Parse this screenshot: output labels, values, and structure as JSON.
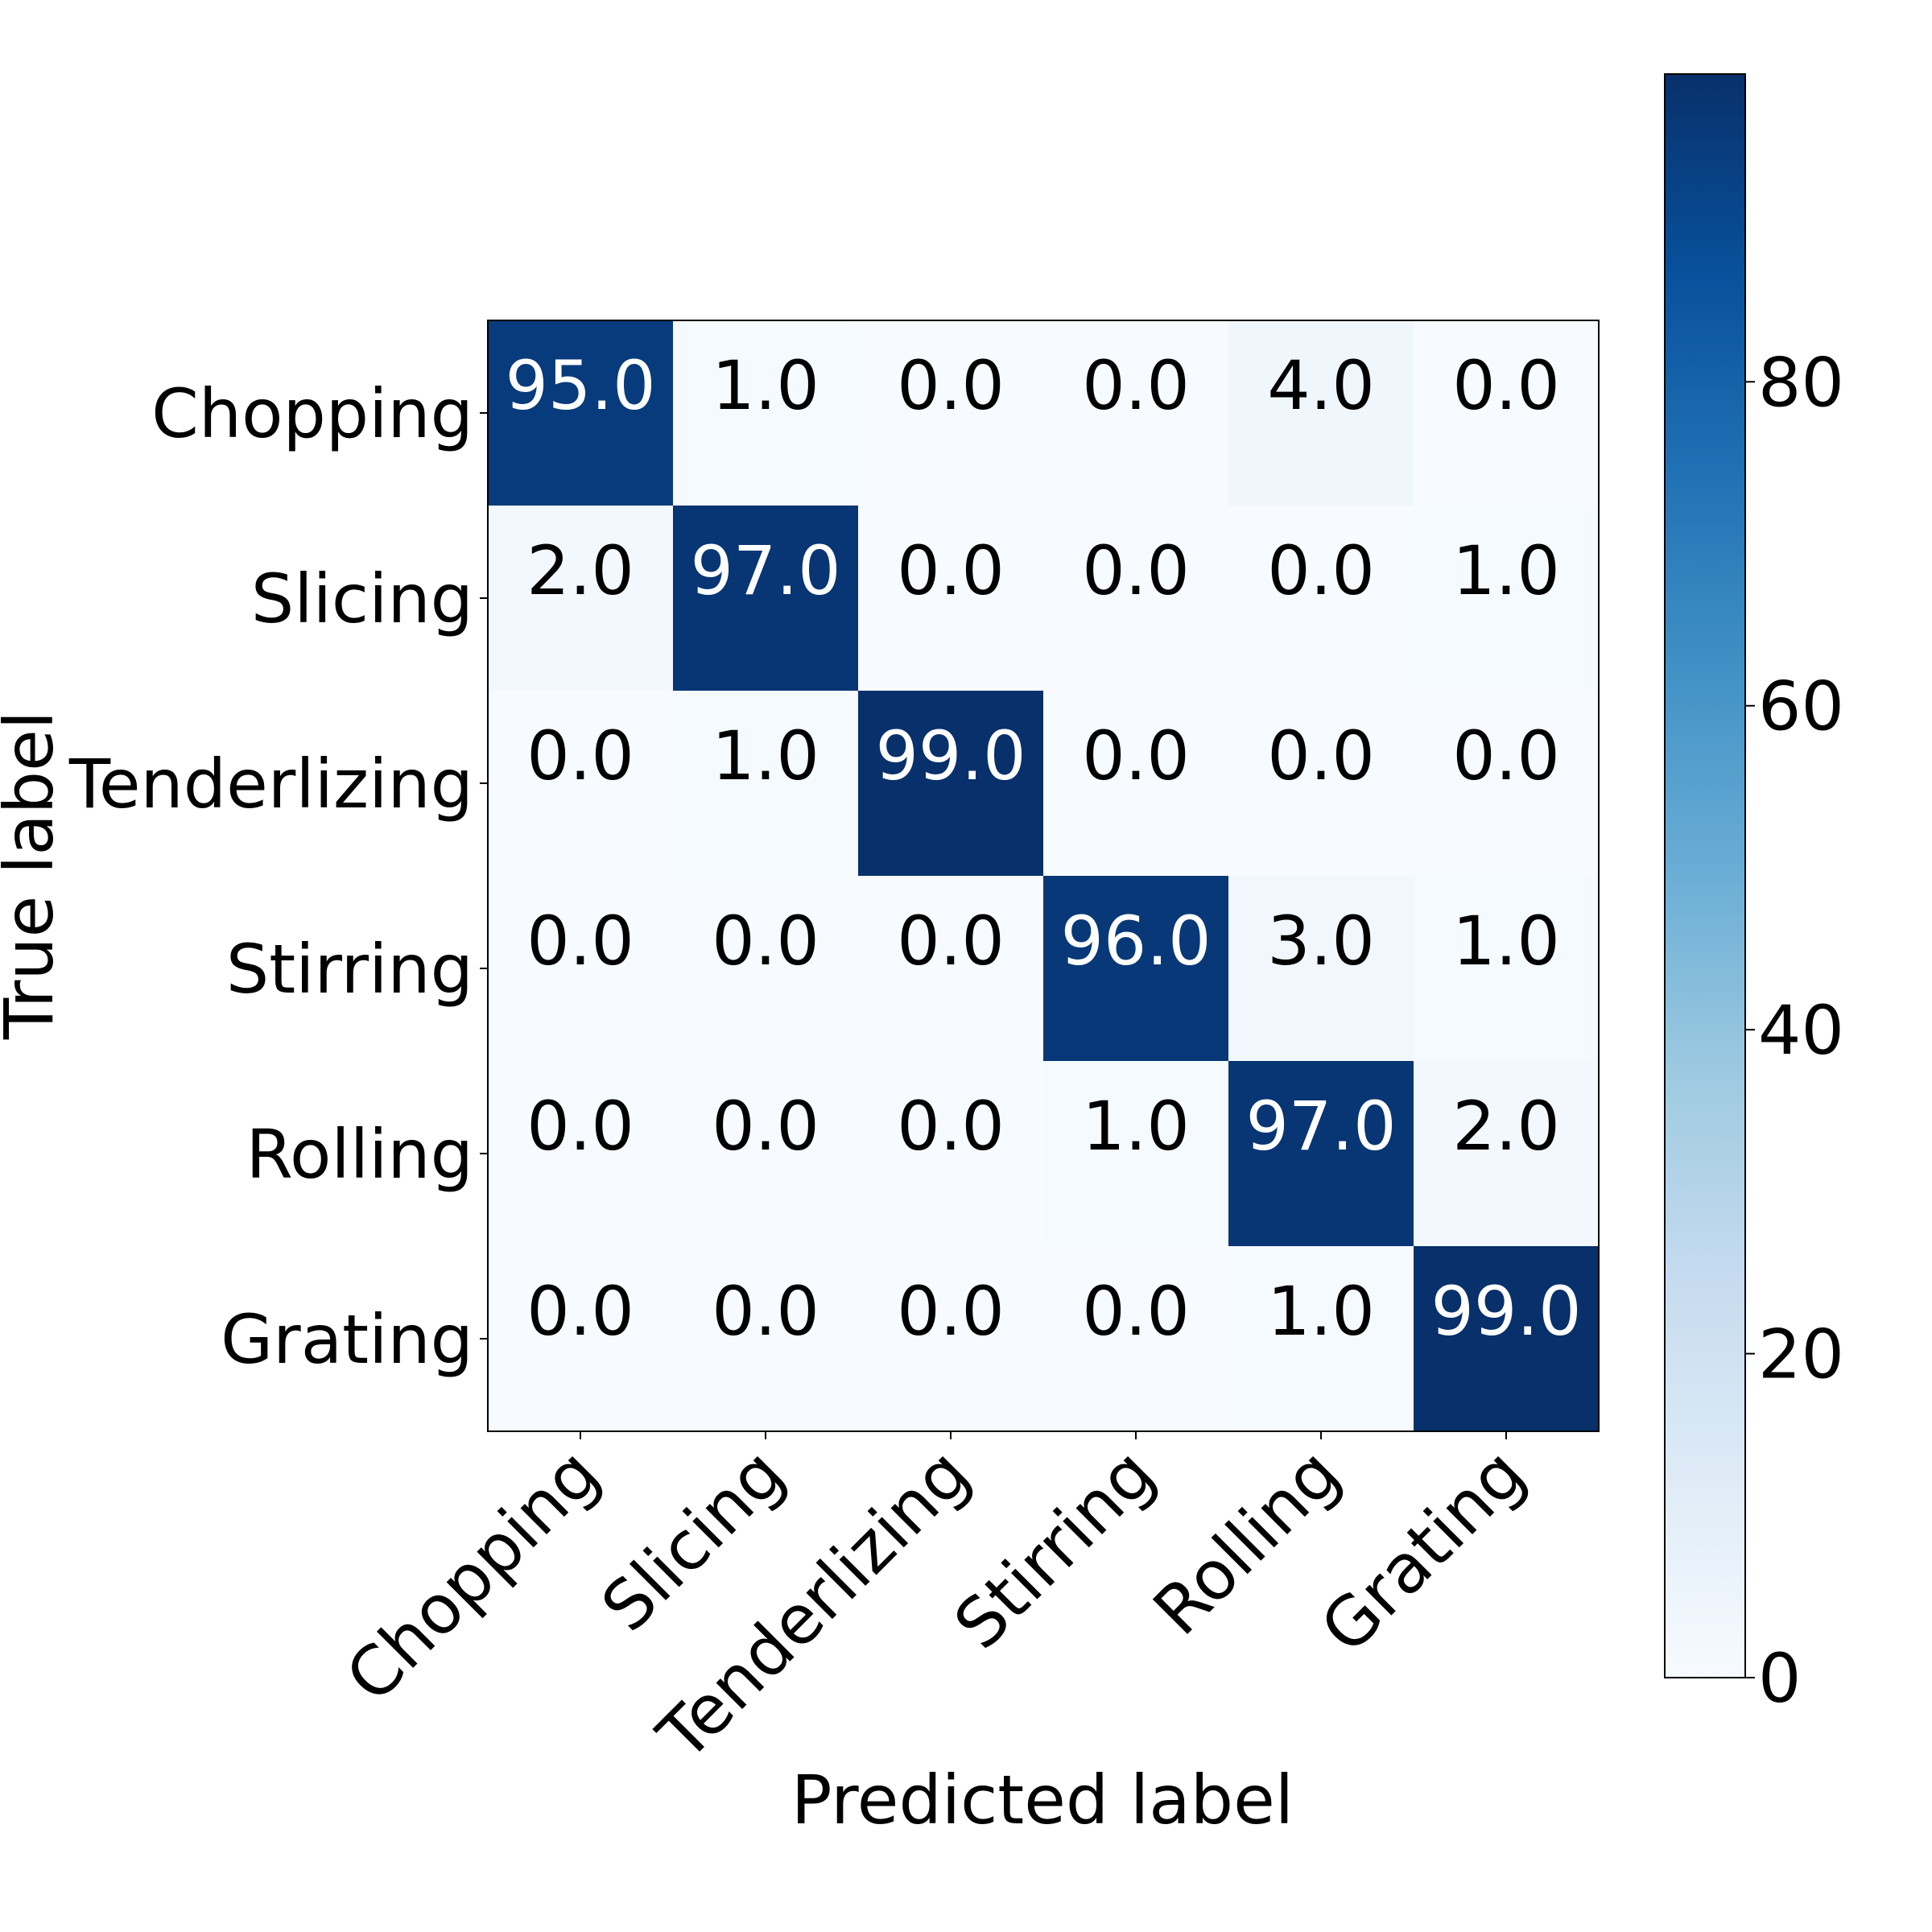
{
  "chart_data": {
    "type": "heatmap",
    "title": "",
    "xlabel": "Predicted label",
    "ylabel": "True label",
    "x_categories": [
      "Chopping",
      "Slicing",
      "Tenderlizing",
      "Stirring",
      "Rolling",
      "Grating"
    ],
    "y_categories": [
      "Chopping",
      "Slicing",
      "Tenderlizing",
      "Stirring",
      "Rolling",
      "Grating"
    ],
    "values": [
      [
        95.0,
        1.0,
        0.0,
        0.0,
        4.0,
        0.0
      ],
      [
        2.0,
        97.0,
        0.0,
        0.0,
        0.0,
        1.0
      ],
      [
        0.0,
        1.0,
        99.0,
        0.0,
        0.0,
        0.0
      ],
      [
        0.0,
        0.0,
        0.0,
        96.0,
        3.0,
        1.0
      ],
      [
        0.0,
        0.0,
        0.0,
        1.0,
        97.0,
        2.0
      ],
      [
        0.0,
        0.0,
        0.0,
        0.0,
        1.0,
        99.0
      ]
    ],
    "colorscale": "Blues",
    "color_range": [
      0,
      99
    ],
    "colorbar_ticks": [
      0,
      20,
      40,
      60,
      80
    ],
    "value_format": "one-decimal",
    "grid": false
  }
}
